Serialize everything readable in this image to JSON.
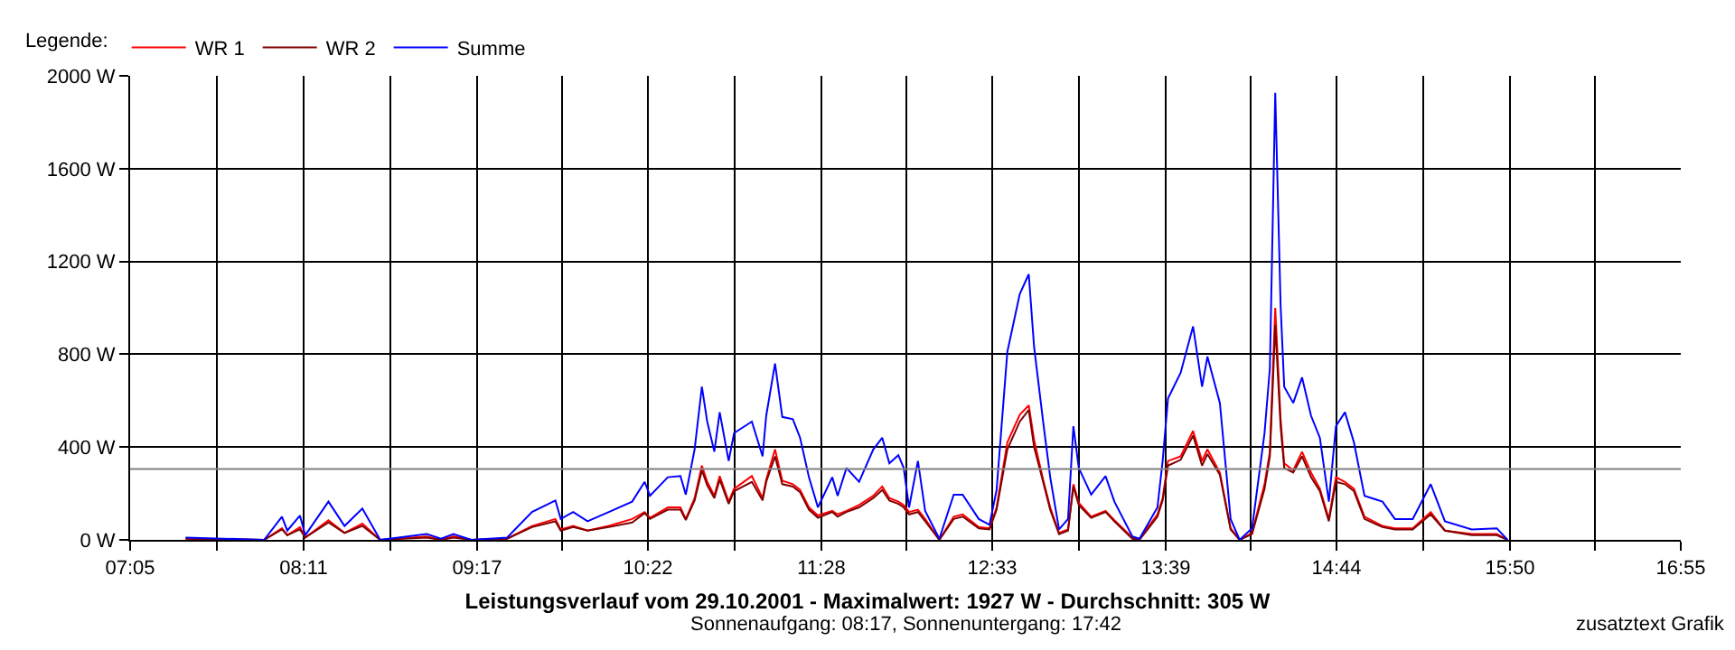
{
  "chart_data": {
    "type": "line",
    "title": "Leistungsverlauf vom 29.10.2001 - Maximalwert: 1927 W - Durchschnitt: 305 W",
    "subtitle": "Sonnenaufgang: 08:17, Sonnenuntergang: 17:42",
    "legend_title": "Legende:",
    "annotations": [
      "zusatztext Grafik"
    ],
    "x": [
      7.435,
      7.933,
      8.046,
      8.08,
      8.16,
      8.194,
      8.341,
      8.443,
      8.556,
      8.669,
      8.964,
      9.055,
      9.134,
      9.247,
      9.474,
      9.632,
      9.78,
      9.814,
      9.893,
      9.984,
      10.119,
      10.267,
      10.346,
      10.38,
      10.493,
      10.573,
      10.607,
      10.663,
      10.709,
      10.743,
      10.788,
      10.822,
      10.879,
      10.913,
      11.026,
      11.094,
      11.117,
      11.173,
      11.219,
      11.286,
      11.332,
      11.388,
      11.445,
      11.536,
      11.57,
      11.626,
      11.706,
      11.796,
      11.853,
      11.898,
      11.955,
      11.989,
      12.023,
      12.079,
      12.125,
      12.215,
      12.306,
      12.363,
      12.465,
      12.533,
      12.578,
      12.646,
      12.725,
      12.782,
      12.816,
      12.873,
      12.918,
      12.974,
      13.031,
      13.065,
      13.099,
      13.178,
      13.269,
      13.325,
      13.439,
      13.484,
      13.598,
      13.631,
      13.665,
      13.745,
      13.824,
      13.881,
      13.915,
      13.994,
      14.062,
      14.119,
      14.198,
      14.277,
      14.311,
      14.345,
      14.379,
      14.402,
      14.459,
      14.515,
      14.572,
      14.628,
      14.685,
      14.73,
      14.787,
      14.844,
      14.911,
      15.025,
      15.104,
      15.217,
      15.331,
      15.421,
      15.591,
      15.75,
      15.818
    ],
    "series": [
      {
        "name": "WR 1",
        "color": "#ff0000",
        "values": [
          5,
          0,
          50,
          20,
          55,
          10,
          85,
          30,
          70,
          0,
          15,
          0,
          15,
          0,
          5,
          60,
          90,
          45,
          60,
          40,
          60,
          90,
          120,
          95,
          140,
          140,
          90,
          180,
          320,
          250,
          190,
          275,
          165,
          220,
          275,
          180,
          260,
          390,
          255,
          240,
          215,
          140,
          105,
          125,
          110,
          125,
          150,
          190,
          230,
          180,
          165,
          150,
          120,
          130,
          90,
          0,
          100,
          110,
          55,
          50,
          140,
          420,
          540,
          580,
          430,
          260,
          140,
          30,
          45,
          240,
          160,
          100,
          125,
          85,
          10,
          5,
          110,
          180,
          340,
          360,
          470,
          340,
          390,
          290,
          50,
          0,
          30,
          240,
          380,
          1000,
          520,
          330,
          300,
          380,
          290,
          220,
          90,
          270,
          250,
          220,
          100,
          60,
          50,
          50,
          120,
          40,
          25,
          25,
          0
        ]
      },
      {
        "name": "WR 2",
        "color": "#800000",
        "values": [
          5,
          0,
          45,
          20,
          45,
          10,
          75,
          30,
          60,
          0,
          10,
          0,
          10,
          0,
          5,
          55,
          80,
          40,
          55,
          40,
          55,
          75,
          115,
          90,
          130,
          130,
          85,
          170,
          300,
          235,
          180,
          260,
          155,
          210,
          250,
          170,
          250,
          360,
          240,
          230,
          205,
          130,
          95,
          120,
          100,
          120,
          140,
          180,
          215,
          170,
          155,
          140,
          110,
          120,
          80,
          0,
          90,
          100,
          50,
          45,
          130,
          390,
          510,
          560,
          400,
          250,
          130,
          25,
          40,
          230,
          150,
          95,
          120,
          80,
          5,
          0,
          100,
          170,
          320,
          345,
          450,
          320,
          370,
          280,
          45,
          0,
          25,
          220,
          360,
          927,
          490,
          310,
          290,
          360,
          270,
          210,
          80,
          250,
          240,
          210,
          90,
          55,
          45,
          45,
          110,
          40,
          20,
          20,
          0
        ]
      },
      {
        "name": "Summe",
        "color": "#0000ff",
        "values": [
          10,
          0,
          100,
          40,
          105,
          20,
          165,
          60,
          135,
          0,
          25,
          5,
          25,
          0,
          10,
          120,
          170,
          90,
          120,
          80,
          120,
          165,
          250,
          190,
          270,
          275,
          195,
          390,
          660,
          510,
          380,
          550,
          340,
          460,
          510,
          360,
          535,
          760,
          530,
          520,
          440,
          270,
          140,
          270,
          190,
          310,
          250,
          390,
          440,
          330,
          365,
          310,
          140,
          340,
          125,
          5,
          195,
          195,
          90,
          65,
          215,
          810,
          1060,
          1145,
          830,
          510,
          270,
          45,
          90,
          490,
          310,
          195,
          275,
          165,
          15,
          5,
          140,
          340,
          610,
          720,
          920,
          660,
          790,
          590,
          90,
          0,
          50,
          460,
          740,
          1927,
          1010,
          660,
          590,
          700,
          535,
          440,
          165,
          490,
          550,
          420,
          190,
          165,
          90,
          90,
          240,
          80,
          45,
          50,
          0
        ]
      }
    ],
    "xlim": [
      7.0833,
      16.9167
    ],
    "xticks": [
      {
        "value": 7.0833,
        "label": "07:05"
      },
      {
        "value": 7.6333,
        "label": null
      },
      {
        "value": 8.1833,
        "label": "08:11"
      },
      {
        "value": 8.7333,
        "label": null
      },
      {
        "value": 9.2833,
        "label": "09:17"
      },
      {
        "value": 9.825,
        "label": null
      },
      {
        "value": 10.3667,
        "label": "10:22"
      },
      {
        "value": 10.9167,
        "label": null
      },
      {
        "value": 11.4667,
        "label": "11:28"
      },
      {
        "value": 12.0083,
        "label": null
      },
      {
        "value": 12.55,
        "label": "12:33"
      },
      {
        "value": 13.1,
        "label": null
      },
      {
        "value": 13.65,
        "label": "13:39"
      },
      {
        "value": 14.1917,
        "label": null
      },
      {
        "value": 14.7333,
        "label": "14:44"
      },
      {
        "value": 15.2833,
        "label": null
      },
      {
        "value": 15.8333,
        "label": "15:50"
      },
      {
        "value": 16.375,
        "label": null
      },
      {
        "value": 16.9167,
        "label": "16:55"
      }
    ],
    "ylim": [
      0,
      2000
    ],
    "yticks": [
      {
        "value": 0,
        "label": "0 W"
      },
      {
        "value": 400,
        "label": "400 W"
      },
      {
        "value": 800,
        "label": "800 W"
      },
      {
        "value": 1200,
        "label": "1200 W"
      },
      {
        "value": 1600,
        "label": "1600 W"
      },
      {
        "value": 2000,
        "label": "2000 W"
      }
    ],
    "ref_lines": [
      {
        "axis": "y",
        "value": 305,
        "color": "#808080"
      }
    ],
    "grid": true,
    "legend": "top left",
    "line_style": "solid"
  }
}
